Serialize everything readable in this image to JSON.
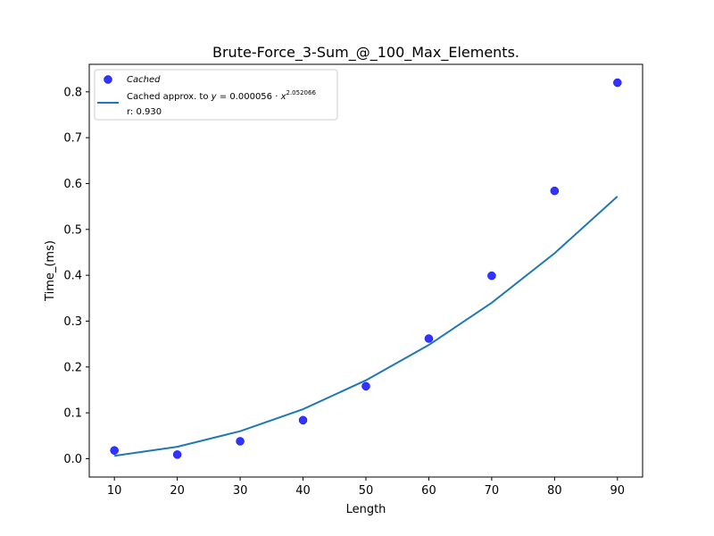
{
  "chart_data": {
    "type": "scatter",
    "title": "Brute-Force_3-Sum_@_100_Max_Elements.",
    "xlabel": "Length",
    "ylabel": "Time_(ms)",
    "xlim": [
      6,
      94
    ],
    "ylim": [
      -0.04,
      0.86
    ],
    "xticks": [
      10,
      20,
      30,
      40,
      50,
      60,
      70,
      80,
      90
    ],
    "yticks": [
      0.0,
      0.1,
      0.2,
      0.3,
      0.4,
      0.5,
      0.6,
      0.7,
      0.8
    ],
    "xtick_labels": [
      "10",
      "20",
      "30",
      "40",
      "50",
      "60",
      "70",
      "80",
      "90"
    ],
    "ytick_labels": [
      "0.0",
      "0.1",
      "0.2",
      "0.3",
      "0.4",
      "0.5",
      "0.6",
      "0.7",
      "0.8"
    ],
    "grid": false,
    "legend_position": "top-left",
    "series": [
      {
        "name": "Cached",
        "kind": "scatter",
        "color": "#0000ff",
        "x": [
          10,
          20,
          30,
          40,
          50,
          60,
          70,
          80,
          90
        ],
        "y": [
          0.018,
          0.009,
          0.038,
          0.084,
          0.158,
          0.262,
          0.399,
          0.584,
          0.82
        ]
      },
      {
        "name": "Cached approx. to y = 0.000056 · x^2.052066",
        "kind": "line",
        "color": "#1f77b4",
        "x": [
          10,
          20,
          30,
          40,
          50,
          60,
          70,
          80,
          90
        ],
        "y": [
          0.0063,
          0.026,
          0.06,
          0.108,
          0.171,
          0.248,
          0.34,
          0.448,
          0.572
        ]
      }
    ],
    "legend": {
      "scatter_label": "Cached",
      "line_label_prefix": "Cached approx. to ",
      "line_label_y": "y",
      "line_label_eq": " = 0.000056 · ",
      "line_label_x": "x",
      "line_label_exp": "2.052066",
      "line_label_r": "r: 0.930"
    }
  }
}
